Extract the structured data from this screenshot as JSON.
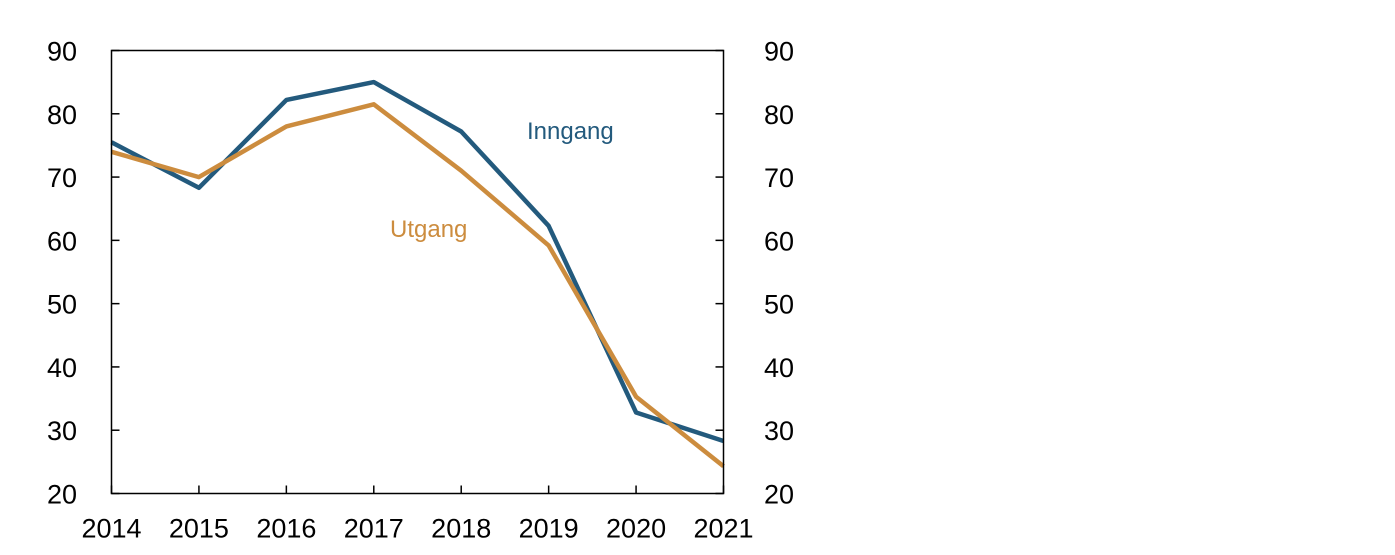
{
  "chart_data": {
    "type": "line",
    "x": [
      2014,
      2015,
      2016,
      2017,
      2018,
      2019,
      2020,
      2021
    ],
    "x_tick_labels": [
      "2014",
      "2015",
      "2016",
      "2017",
      "2018",
      "2019",
      "2020",
      "2021"
    ],
    "ylim": [
      20,
      90
    ],
    "y_ticks": [
      20,
      30,
      40,
      50,
      60,
      70,
      80,
      90
    ],
    "y_tick_labels_left": [
      "20",
      "30",
      "40",
      "50",
      "60",
      "70",
      "80",
      "90"
    ],
    "y_tick_labels_right": [
      "20",
      "30",
      "40",
      "50",
      "60",
      "70",
      "80",
      "90"
    ],
    "grid": false,
    "legend": "inline labels",
    "series": [
      {
        "name": "Inngang",
        "color": "#235A7D",
        "values": [
          75.5,
          68.3,
          82.2,
          85.0,
          77.2,
          62.3,
          32.8,
          28.3
        ]
      },
      {
        "name": "Utgang",
        "color": "#CC8C3E",
        "values": [
          74.0,
          70.0,
          78.0,
          81.5,
          71.0,
          59.2,
          35.3,
          24.3
        ]
      }
    ]
  }
}
